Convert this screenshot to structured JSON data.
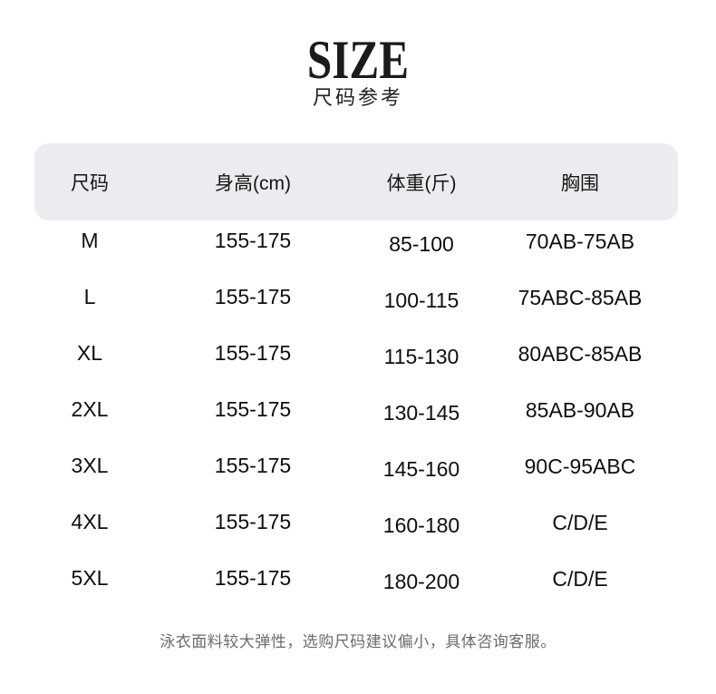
{
  "page": {
    "title": "SIZE",
    "subtitle": "尺码参考"
  },
  "chart_data": {
    "type": "table",
    "title": "SIZE",
    "subtitle": "尺码参考",
    "columns": [
      "尺码",
      "身高(cm)",
      "体重(斤)",
      "胸围"
    ],
    "rows": [
      [
        "M",
        "155-175",
        "85-100",
        "70AB-75AB"
      ],
      [
        "L",
        "155-175",
        "100-115",
        "75ABC-85AB"
      ],
      [
        "XL",
        "155-175",
        "115-130",
        "80ABC-85AB"
      ],
      [
        "2XL",
        "155-175",
        "130-145",
        "85AB-90AB"
      ],
      [
        "3XL",
        "155-175",
        "145-160",
        "90C-95ABC"
      ],
      [
        "4XL",
        "155-175",
        "160-180",
        "C/D/E"
      ],
      [
        "5XL",
        "155-175",
        "180-200",
        "C/D/E"
      ]
    ],
    "footnote": "泳衣面料较大弹性，选购尺码建议偏小，具体咨询客服。",
    "layout": {
      "legend": "none",
      "grid": "off",
      "header_style": "rounded-gray-band"
    }
  },
  "colors": {
    "header_bg": "#ececf0",
    "title_text": "#1b1b1d",
    "body_text": "#0e0e0f",
    "note_text": "#6b6b6d",
    "background": "#ffffff"
  }
}
